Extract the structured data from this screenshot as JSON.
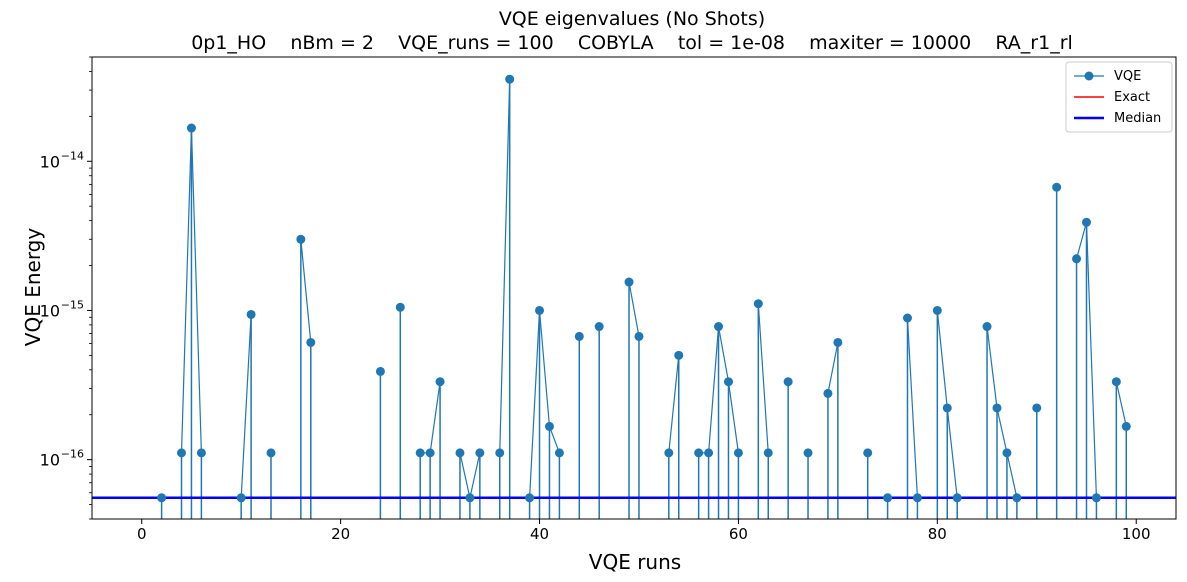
{
  "chart_data": {
    "type": "line",
    "title": "VQE eigenvalues (No Shots)",
    "subtitle": "0p1_HO    nBm = 2    VQE_runs = 100    COBYLA    tol = 1e-08    maxiter = 10000    RA_r1_rl",
    "xlabel": "VQE runs",
    "ylabel": "VQE Energy",
    "xlim": [
      -5,
      104
    ],
    "ylim": [
      4e-17,
      5e-14
    ],
    "yscale": "log",
    "grid": false,
    "legend_position": "top-right",
    "x_ticks": [
      {
        "value": 0,
        "label": "0"
      },
      {
        "value": 20,
        "label": "20"
      },
      {
        "value": 40,
        "label": "40"
      },
      {
        "value": 60,
        "label": "60"
      },
      {
        "value": 80,
        "label": "80"
      },
      {
        "value": 100,
        "label": "100"
      }
    ],
    "y_ticks": [
      {
        "value": 1e-16,
        "base": "10",
        "exp": "−16"
      },
      {
        "value": 1e-15,
        "base": "10",
        "exp": "−15"
      },
      {
        "value": 1e-14,
        "base": "10",
        "exp": "−14"
      }
    ],
    "series": [
      {
        "name": "VQE",
        "color": "#1f77b4",
        "points": [
          [
            2,
            5.55e-17
          ],
          [
            4,
            1.11e-16
          ],
          [
            5,
            1.67e-14
          ],
          [
            6,
            1.11e-16
          ],
          [
            10,
            5.55e-17
          ],
          [
            11,
            9.4e-16
          ],
          [
            13,
            1.11e-16
          ],
          [
            16,
            3e-15
          ],
          [
            17,
            6.1e-16
          ],
          [
            24,
            3.9e-16
          ],
          [
            26,
            1.05e-15
          ],
          [
            28,
            1.11e-16
          ],
          [
            29,
            1.11e-16
          ],
          [
            30,
            3.33e-16
          ],
          [
            32,
            1.11e-16
          ],
          [
            33,
            5.55e-17
          ],
          [
            34,
            1.11e-16
          ],
          [
            36,
            1.11e-16
          ],
          [
            37,
            3.55e-14
          ],
          [
            39,
            5.55e-17
          ],
          [
            40,
            1e-15
          ],
          [
            41,
            1.67e-16
          ],
          [
            42,
            1.11e-16
          ],
          [
            44,
            6.7e-16
          ],
          [
            46,
            7.8e-16
          ],
          [
            49,
            1.55e-15
          ],
          [
            50,
            6.7e-16
          ],
          [
            53,
            1.11e-16
          ],
          [
            54,
            5e-16
          ],
          [
            56,
            1.11e-16
          ],
          [
            57,
            1.11e-16
          ],
          [
            58,
            7.8e-16
          ],
          [
            59,
            3.33e-16
          ],
          [
            60,
            1.11e-16
          ],
          [
            62,
            1.11e-15
          ],
          [
            63,
            1.11e-16
          ],
          [
            65,
            3.33e-16
          ],
          [
            67,
            1.11e-16
          ],
          [
            69,
            2.78e-16
          ],
          [
            70,
            6.1e-16
          ],
          [
            73,
            1.11e-16
          ],
          [
            75,
            5.55e-17
          ],
          [
            77,
            8.9e-16
          ],
          [
            78,
            5.55e-17
          ],
          [
            80,
            1e-15
          ],
          [
            81,
            2.22e-16
          ],
          [
            82,
            5.55e-17
          ],
          [
            85,
            7.8e-16
          ],
          [
            86,
            2.22e-16
          ],
          [
            87,
            1.11e-16
          ],
          [
            88,
            5.55e-17
          ],
          [
            90,
            2.22e-16
          ],
          [
            92,
            6.7e-15
          ],
          [
            94,
            2.22e-15
          ],
          [
            95,
            3.9e-15
          ],
          [
            96,
            5.55e-17
          ],
          [
            98,
            3.33e-16
          ],
          [
            99,
            1.67e-16
          ]
        ]
      },
      {
        "name": "Exact",
        "color": "#ff0000",
        "value": 0
      },
      {
        "name": "Median",
        "color": "#0000ff",
        "value": 5.55e-17
      }
    ]
  }
}
